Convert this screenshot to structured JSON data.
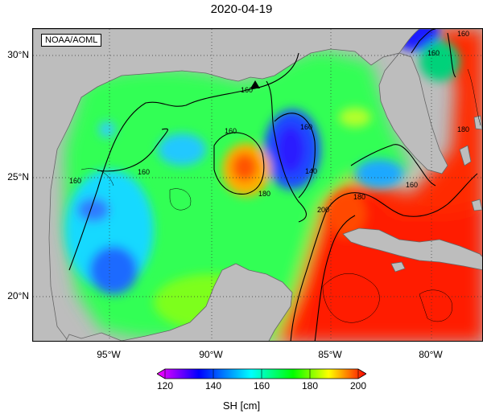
{
  "title": "2020-04-19",
  "credit": "NOAA/AOML",
  "lat_labels": [
    "30°N",
    "25°N",
    "20°N"
  ],
  "lon_labels": [
    "95°W",
    "90°W",
    "85°W",
    "80°W"
  ],
  "colorbar": {
    "title": "SH [cm]",
    "ticks": [
      "120",
      "140",
      "160",
      "180",
      "200"
    ],
    "colors": [
      "#ff00ff",
      "#0000ff",
      "#00ffff",
      "#00ff00",
      "#ffff00",
      "#ff0000"
    ]
  },
  "contour_labels": [
    "160",
    "160",
    "160",
    "160",
    "160",
    "160",
    "160",
    "140",
    "180",
    "180",
    "200",
    "180",
    "160"
  ]
}
